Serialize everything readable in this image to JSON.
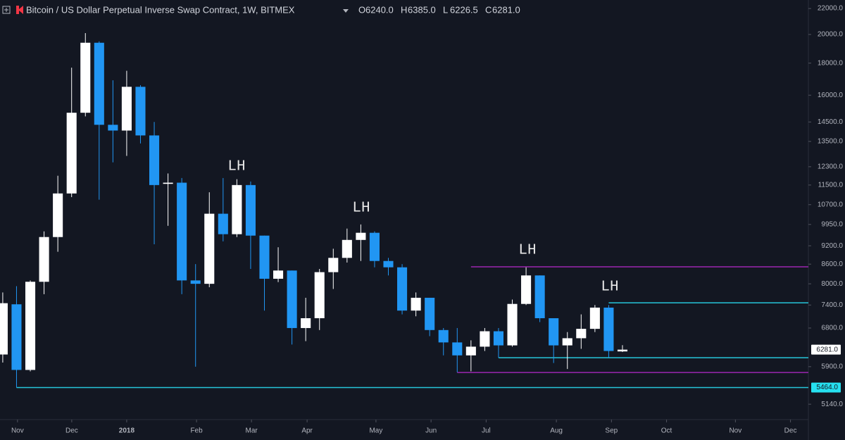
{
  "chart_data": {
    "type": "candlestick",
    "title": "Bitcoin / US Dollar Perpetual Inverse Swap Contract, 1W, BITMEX",
    "ohlc_header": [
      {
        "label": "O",
        "value": "6240.0"
      },
      {
        "label": "H",
        "value": "6385.0"
      },
      {
        "label": "L",
        "value": "6226.5"
      },
      {
        "label": "C",
        "value": "6281.0"
      }
    ],
    "x": [
      0,
      1,
      2,
      3,
      4,
      5,
      6,
      7,
      8,
      9,
      10,
      11,
      12,
      13,
      14,
      15,
      16,
      17,
      18,
      19,
      20,
      21,
      22,
      23,
      24,
      25,
      26,
      27,
      28,
      29,
      30,
      31,
      32,
      33,
      34,
      35,
      36,
      37,
      38,
      39,
      40,
      41,
      42,
      43,
      44,
      45
    ],
    "open": [
      6170,
      7420,
      5830,
      8060,
      9500,
      11150,
      15000,
      19400,
      14350,
      14050,
      16500,
      13800,
      11550,
      11600,
      8100,
      8000,
      10350,
      9600,
      11500,
      9550,
      8150,
      8400,
      6800,
      7050,
      8350,
      8800,
      9400,
      9650,
      8700,
      8500,
      7250,
      7600,
      6750,
      6450,
      6150,
      6350,
      6720,
      6380,
      7430,
      8250,
      7050,
      6380,
      6550,
      6780,
      7330,
      6240
    ],
    "high": [
      7750,
      7930,
      8100,
      9700,
      11900,
      17700,
      20100,
      19500,
      16900,
      17500,
      16600,
      14500,
      12000,
      11800,
      8600,
      11200,
      11800,
      11750,
      11650,
      9550,
      9150,
      8400,
      7600,
      8450,
      9100,
      9800,
      9950,
      9700,
      8800,
      8600,
      7750,
      7600,
      6800,
      6800,
      6500,
      6800,
      6800,
      7550,
      8500,
      8250,
      7050,
      6700,
      7150,
      7400,
      7400,
      6385
    ],
    "low": [
      5990,
      5464,
      5800,
      7700,
      9000,
      11000,
      14800,
      10900,
      12500,
      12800,
      13400,
      9250,
      9900,
      7700,
      5900,
      7900,
      9350,
      9500,
      8450,
      7250,
      8050,
      6400,
      6480,
      6750,
      7850,
      8650,
      8700,
      8500,
      8250,
      7150,
      7100,
      6600,
      6150,
      5780,
      5800,
      6250,
      6100,
      6350,
      7400,
      6950,
      5980,
      5850,
      6300,
      6700,
      6100,
      6226.5
    ],
    "close": [
      7450,
      5830,
      8060,
      9500,
      11150,
      15000,
      19400,
      14350,
      14050,
      16500,
      13800,
      11500,
      11600,
      8100,
      8000,
      10350,
      9600,
      11500,
      9550,
      8150,
      8400,
      6800,
      7050,
      8350,
      8800,
      9400,
      9650,
      8700,
      8500,
      7250,
      7600,
      6750,
      6450,
      6150,
      6350,
      6720,
      6380,
      7430,
      8250,
      7050,
      6380,
      6550,
      6780,
      7330,
      6250,
      6281
    ],
    "up_color": "#ffffff",
    "down_color": "#2196f3",
    "log_scale": true,
    "grid": false,
    "xlim": [
      -0.2,
      58.5
    ],
    "xticks": [
      {
        "value": 1.07,
        "label": "Nov"
      },
      {
        "value": 5.01,
        "label": "Dec"
      },
      {
        "value": 9.0,
        "label": "2018"
      },
      {
        "value": 14.07,
        "label": "Feb"
      },
      {
        "value": 18.06,
        "label": "Mar"
      },
      {
        "value": 22.1,
        "label": "Apr"
      },
      {
        "value": 27.1,
        "label": "May"
      },
      {
        "value": 31.1,
        "label": "Jun"
      },
      {
        "value": 35.1,
        "label": "Jul"
      },
      {
        "value": 40.2,
        "label": "Aug"
      },
      {
        "value": 44.2,
        "label": "Sep"
      },
      {
        "value": 48.2,
        "label": "Oct"
      },
      {
        "value": 53.2,
        "label": "Nov"
      },
      {
        "value": 57.2,
        "label": "Dec"
      }
    ],
    "ylim": [
      4870,
      22700
    ],
    "yticks": [
      {
        "value": 22000,
        "label": "22000.0"
      },
      {
        "value": 20000,
        "label": "20000.0"
      },
      {
        "value": 18000,
        "label": "18000.0"
      },
      {
        "value": 16000,
        "label": "16000.0"
      },
      {
        "value": 14500,
        "label": "14500.0"
      },
      {
        "value": 13500,
        "label": "13500.0"
      },
      {
        "value": 12300,
        "label": "12300.0"
      },
      {
        "value": 11500,
        "label": "11500.0"
      },
      {
        "value": 10700,
        "label": "10700.0"
      },
      {
        "value": 9950,
        "label": "9950.0"
      },
      {
        "value": 9200,
        "label": "9200.0"
      },
      {
        "value": 8600,
        "label": "8600.0"
      },
      {
        "value": 8000,
        "label": "8000.0"
      },
      {
        "value": 7400,
        "label": "7400.0"
      },
      {
        "value": 6800,
        "label": "6800.0"
      },
      {
        "value": 5900,
        "label": "5900.0"
      },
      {
        "value": 5140,
        "label": "5140.0"
      }
    ],
    "levels": [
      {
        "value": 8515,
        "start": 34,
        "color": "#9c27b0"
      },
      {
        "value": 5775,
        "start": 33,
        "color": "#9c27b0"
      },
      {
        "value": 7460,
        "start": 44,
        "color": "#26c6da"
      },
      {
        "value": 6097,
        "start": 36,
        "color": "#26c6da"
      },
      {
        "value": 5464,
        "start": 1,
        "color": "#26c6da"
      }
    ],
    "price_labels": [
      {
        "value": 6281,
        "label": "6281.0",
        "color": "#ffffff"
      },
      {
        "value": 5464,
        "label": "5464.0",
        "color": "#26e0f0"
      }
    ],
    "annotations": [
      "LH",
      "LH",
      "LH",
      "LH"
    ]
  }
}
